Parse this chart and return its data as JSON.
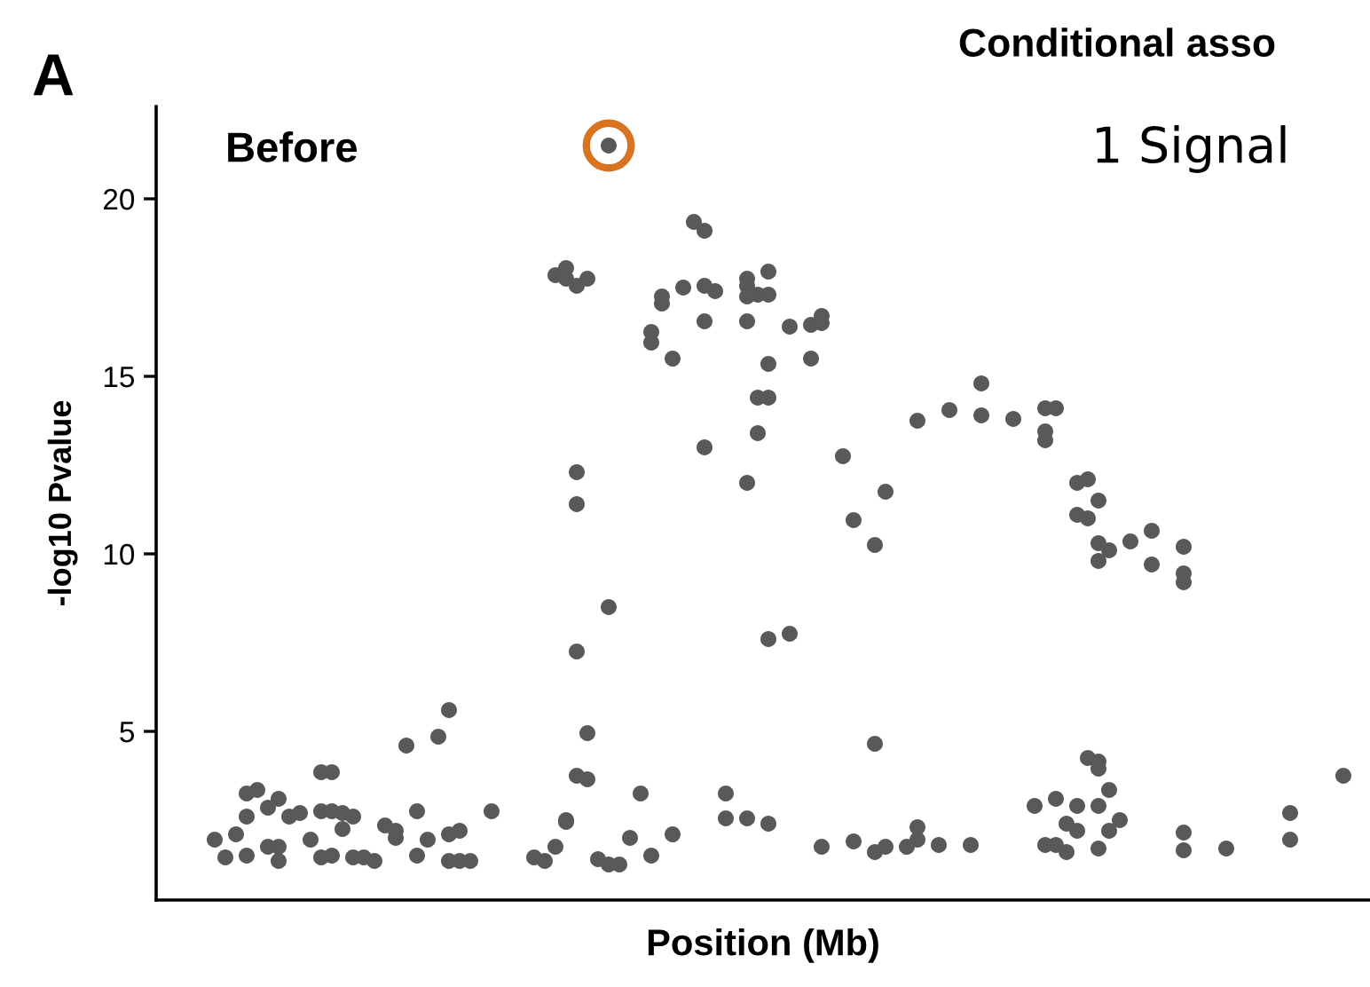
{
  "chart_data": {
    "type": "scatter",
    "title": "Conditional asso",
    "xlabel": "Position (Mb)",
    "ylabel": "-log10 Pvalue",
    "annotations": [
      "A",
      "Before",
      "1 Signal"
    ],
    "categories": [
      null,
      null,
      null,
      null,
      null,
      null,
      null,
      null,
      null,
      null,
      null,
      null,
      null,
      null,
      null,
      null,
      null,
      null,
      null,
      null,
      null,
      null,
      null,
      null,
      null,
      null,
      null,
      null,
      null,
      null,
      null,
      null,
      null,
      null,
      null,
      null,
      null,
      null,
      null,
      null,
      null,
      null,
      null,
      null,
      null,
      null,
      null,
      null,
      null,
      null,
      null,
      null,
      null,
      null,
      null,
      null,
      null,
      null,
      null,
      null,
      null,
      null,
      null,
      null,
      null,
      null,
      null,
      null,
      null,
      null,
      null,
      null,
      null,
      null,
      null,
      null,
      null,
      null,
      null,
      null,
      null,
      null,
      null,
      null,
      null,
      null,
      null,
      null,
      null,
      null,
      null,
      null,
      null,
      null,
      null,
      null,
      null,
      null,
      null,
      null,
      null,
      null,
      null,
      null,
      null,
      null,
      null,
      null,
      null,
      null,
      null,
      null,
      null,
      null
    ],
    "ylim": [
      0.25,
      22.6
    ],
    "yticks": [
      5,
      10,
      15,
      20
    ],
    "grid": false,
    "legend": false,
    "marker": "circle",
    "series": [
      {
        "color": "#595959",
        "values": [
          null,
          null,
          null,
          null,
          null,
          1.95,
          1.45,
          2.1,
          1.5,
          3.35,
          2.85,
          3.1,
          2.6,
          2.7,
          1.95,
          3.85,
          3.85,
          2.7,
          2.6,
          1.45,
          1.35,
          2.35,
          2.0,
          4.6,
          2.75,
          1.95,
          4.85,
          5.6,
          2.2,
          1.35,
          null,
          2.75,
          null,
          null,
          null,
          1.45,
          1.35,
          1.75,
          2.5,
          17.55,
          17.75,
          1.4,
          21.5,
          1.25,
          2.0,
          3.25,
          16.25,
          17.25,
          15.5,
          17.5,
          19.35,
          19.1,
          17.4,
          3.25,
          null,
          17.75,
          17.3,
          17.3,
          null,
          16.4,
          null,
          16.45,
          16.5,
          null,
          12.75,
          10.95,
          null,
          10.25,
          11.75,
          null,
          1.75,
          13.75,
          null,
          1.8,
          14.05,
          null,
          1.8,
          14.8,
          null,
          null,
          13.8,
          null,
          2.9,
          14.1,
          14.1,
          2.4,
          12.0,
          12.1,
          11.5,
          10.1,
          2.5,
          10.35,
          null,
          10.65,
          null,
          null,
          10.2,
          null,
          null,
          null,
          1.7,
          null,
          null,
          null,
          null,
          null,
          2.7,
          null,
          null,
          null,
          null,
          3.75,
          null,
          null
        ]
      },
      {
        "color": "#595959",
        "values": [
          null,
          null,
          null,
          null,
          null,
          null,
          null,
          null,
          3.25,
          null,
          1.75,
          1.35,
          null,
          null,
          null,
          2.75,
          2.75,
          2.25,
          1.45,
          null,
          null,
          null,
          2.2,
          null,
          1.5,
          null,
          null,
          2.1,
          1.35,
          null,
          null,
          null,
          null,
          null,
          null,
          null,
          null,
          17.85,
          18.05,
          12.3,
          4.95,
          null,
          8.5,
          null,
          null,
          null,
          15.95,
          17.05,
          2.1,
          null,
          null,
          17.55,
          null,
          2.55,
          null,
          17.55,
          14.4,
          17.95,
          null,
          7.75,
          null,
          15.5,
          16.7,
          null,
          null,
          1.9,
          null,
          4.65,
          1.75,
          null,
          null,
          2.3,
          null,
          null,
          null,
          null,
          null,
          13.9,
          null,
          null,
          null,
          null,
          null,
          13.45,
          3.1,
          1.6,
          11.1,
          11.0,
          10.3,
          3.35,
          null,
          null,
          null,
          null,
          null,
          null,
          9.45,
          null,
          null,
          null,
          null,
          null,
          null,
          null,
          null,
          null,
          1.95,
          null,
          null,
          null,
          null,
          null,
          null,
          null
        ]
      },
      {
        "color": "#595959",
        "values": [
          null,
          null,
          null,
          null,
          null,
          null,
          null,
          null,
          2.6,
          null,
          null,
          1.75,
          null,
          null,
          null,
          1.45,
          1.5,
          null,
          null,
          null,
          null,
          null,
          null,
          null,
          null,
          null,
          null,
          1.35,
          null,
          null,
          null,
          null,
          null,
          null,
          null,
          null,
          null,
          null,
          17.75,
          11.4,
          3.65,
          null,
          1.25,
          null,
          null,
          null,
          1.5,
          null,
          null,
          null,
          null,
          null,
          null,
          null,
          null,
          17.25,
          13.4,
          15.35,
          null,
          null,
          null,
          null,
          1.75,
          null,
          null,
          null,
          null,
          1.6,
          null,
          null,
          null,
          1.95,
          null,
          null,
          null,
          null,
          null,
          null,
          null,
          null,
          null,
          null,
          null,
          13.2,
          1.8,
          null,
          2.9,
          4.25,
          9.8,
          2.2,
          null,
          null,
          null,
          9.7,
          null,
          null,
          9.2,
          null,
          null,
          null,
          null,
          null,
          null,
          null,
          null,
          null,
          null,
          null,
          null,
          null,
          null,
          null,
          null,
          null
        ]
      },
      {
        "color": "#595959",
        "values": [
          null,
          null,
          null,
          null,
          null,
          null,
          null,
          null,
          null,
          null,
          null,
          null,
          null,
          null,
          null,
          null,
          null,
          null,
          null,
          null,
          null,
          null,
          null,
          null,
          null,
          null,
          null,
          null,
          null,
          null,
          null,
          null,
          null,
          null,
          null,
          null,
          null,
          null,
          2.45,
          7.25,
          null,
          null,
          null,
          null,
          null,
          null,
          null,
          null,
          null,
          null,
          null,
          16.55,
          null,
          null,
          null,
          16.55,
          null,
          14.4,
          null,
          null,
          null,
          null,
          null,
          null,
          null,
          null,
          null,
          null,
          null,
          null,
          null,
          null,
          null,
          null,
          null,
          null,
          null,
          null,
          null,
          null,
          null,
          null,
          null,
          1.8,
          null,
          null,
          2.2,
          null,
          4.15,
          null,
          null,
          null,
          null,
          null,
          null,
          null,
          null,
          null,
          null,
          null,
          null,
          null,
          null,
          null,
          null,
          null,
          null,
          null,
          null,
          null,
          null,
          null,
          null,
          null
        ]
      },
      {
        "color": "#595959",
        "values": [
          null,
          null,
          null,
          null,
          null,
          null,
          null,
          null,
          null,
          null,
          null,
          null,
          null,
          null,
          null,
          null,
          null,
          null,
          null,
          null,
          null,
          null,
          null,
          null,
          null,
          null,
          null,
          null,
          null,
          null,
          null,
          null,
          null,
          null,
          null,
          null,
          null,
          null,
          null,
          3.75,
          null,
          null,
          null,
          null,
          null,
          null,
          null,
          null,
          null,
          null,
          null,
          13.0,
          null,
          null,
          null,
          12.0,
          null,
          7.6,
          null,
          null,
          null,
          null,
          null,
          null,
          null,
          null,
          null,
          null,
          null,
          null,
          null,
          null,
          null,
          null,
          null,
          null,
          null,
          null,
          null,
          null,
          null,
          null,
          null,
          null,
          null,
          null,
          null,
          null,
          3.95,
          null,
          null,
          null,
          null,
          null,
          null,
          null,
          2.15,
          null,
          null,
          null,
          null,
          null,
          null,
          null,
          null,
          null,
          null,
          null,
          null,
          null,
          null,
          null,
          null,
          null
        ]
      },
      {
        "color": "#595959",
        "values": [
          null,
          null,
          null,
          null,
          null,
          null,
          null,
          null,
          null,
          null,
          null,
          null,
          null,
          null,
          null,
          null,
          null,
          null,
          null,
          null,
          null,
          null,
          null,
          null,
          null,
          null,
          null,
          null,
          null,
          null,
          null,
          null,
          null,
          null,
          null,
          null,
          null,
          null,
          null,
          null,
          null,
          null,
          null,
          null,
          null,
          null,
          null,
          null,
          null,
          null,
          null,
          null,
          null,
          null,
          null,
          2.55,
          null,
          2.4,
          null,
          null,
          null,
          null,
          null,
          null,
          null,
          null,
          null,
          null,
          null,
          null,
          null,
          null,
          null,
          null,
          null,
          null,
          null,
          null,
          null,
          null,
          null,
          null,
          null,
          null,
          null,
          null,
          null,
          null,
          2.9,
          null,
          null,
          null,
          null,
          null,
          null,
          null,
          1.65,
          null,
          null,
          null,
          null,
          null,
          null,
          null,
          null,
          null,
          null,
          null,
          null,
          null,
          null,
          null,
          null,
          null
        ]
      },
      {
        "color": "#595959",
        "values": [
          null,
          null,
          null,
          null,
          null,
          null,
          null,
          null,
          null,
          null,
          null,
          null,
          null,
          null,
          null,
          null,
          null,
          null,
          null,
          null,
          null,
          null,
          null,
          null,
          null,
          null,
          null,
          null,
          null,
          null,
          null,
          null,
          null,
          null,
          null,
          null,
          null,
          null,
          null,
          null,
          null,
          null,
          null,
          null,
          null,
          null,
          null,
          null,
          null,
          null,
          null,
          null,
          null,
          null,
          null,
          null,
          null,
          null,
          null,
          null,
          null,
          null,
          null,
          null,
          null,
          null,
          null,
          null,
          null,
          null,
          null,
          null,
          null,
          null,
          null,
          null,
          null,
          null,
          null,
          null,
          null,
          null,
          null,
          null,
          null,
          null,
          null,
          null,
          1.7,
          null,
          null,
          null,
          null,
          null,
          null,
          null,
          null,
          null,
          null,
          null,
          null,
          null,
          null,
          null,
          null,
          null,
          null,
          null,
          null,
          null,
          null,
          null,
          null,
          null
        ]
      }
    ]
  }
}
